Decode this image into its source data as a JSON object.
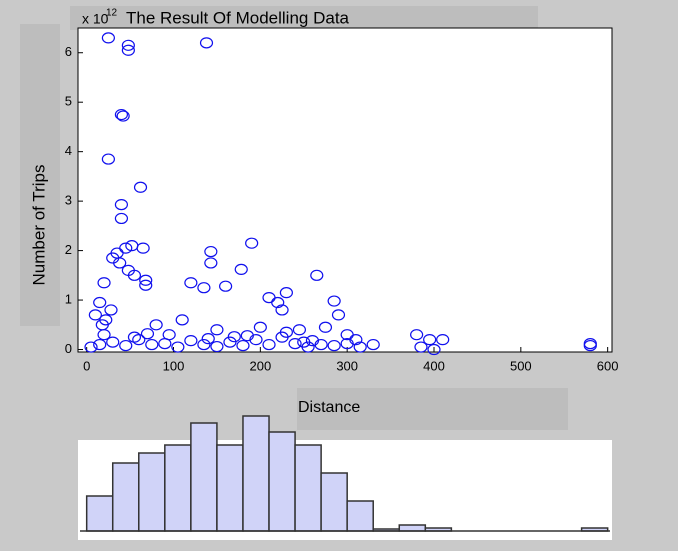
{
  "chart_data": [
    {
      "type": "scatter",
      "title": "The Result Of Modelling Data",
      "y_multiplier": "x 10",
      "y_multiplier_exponent": "12",
      "x_label": "Distance",
      "y_label": "Number of Trips",
      "color": "#1010ee",
      "xlim": [
        -10,
        605
      ],
      "ylim": [
        -0.05,
        6.5
      ],
      "xticks": [
        0,
        100,
        200,
        300,
        400,
        500,
        600
      ],
      "yticks": [
        0,
        1,
        2,
        3,
        4,
        5,
        6
      ],
      "x": [
        25,
        48,
        48,
        138,
        40,
        42,
        25,
        40,
        40,
        62,
        35,
        45,
        52,
        30,
        38,
        48,
        55,
        65,
        68,
        68,
        143,
        143,
        190,
        178,
        265,
        160,
        135,
        120,
        210,
        230,
        220,
        225,
        285,
        290,
        20,
        15,
        10,
        18,
        28,
        22,
        80,
        110,
        150,
        200,
        245,
        275,
        300,
        380,
        395,
        410,
        385,
        400,
        580,
        580,
        5,
        15,
        30,
        45,
        60,
        75,
        90,
        105,
        120,
        135,
        150,
        165,
        180,
        195,
        210,
        225,
        240,
        255,
        270,
        285,
        300,
        315,
        330,
        20,
        55,
        95,
        140,
        185,
        230,
        260,
        310,
        70,
        170,
        250
      ],
      "y": [
        6.3,
        6.15,
        6.05,
        6.2,
        4.75,
        4.72,
        3.85,
        2.93,
        2.65,
        3.28,
        1.95,
        2.05,
        2.1,
        1.85,
        1.75,
        1.6,
        1.5,
        2.05,
        1.4,
        1.3,
        1.98,
        1.75,
        2.15,
        1.62,
        1.5,
        1.28,
        1.25,
        1.35,
        1.05,
        1.15,
        0.95,
        0.8,
        0.98,
        0.7,
        1.35,
        0.95,
        0.7,
        0.5,
        0.8,
        0.6,
        0.5,
        0.6,
        0.4,
        0.45,
        0.4,
        0.45,
        0.3,
        0.3,
        0.2,
        0.2,
        0.05,
        0.0,
        0.12,
        0.08,
        0.05,
        0.1,
        0.15,
        0.08,
        0.2,
        0.1,
        0.12,
        0.05,
        0.18,
        0.1,
        0.06,
        0.15,
        0.08,
        0.2,
        0.1,
        0.25,
        0.12,
        0.05,
        0.1,
        0.08,
        0.12,
        0.05,
        0.1,
        0.3,
        0.25,
        0.3,
        0.22,
        0.28,
        0.35,
        0.18,
        0.2,
        0.32,
        0.26,
        0.15
      ]
    },
    {
      "type": "histogram",
      "color": "#d0d3f8",
      "bins": [
        0,
        30,
        60,
        90,
        120,
        150,
        180,
        210,
        240,
        270,
        300,
        330,
        360,
        390,
        420,
        450,
        480,
        510,
        540,
        570,
        600
      ],
      "counts": [
        35,
        68,
        78,
        86,
        108,
        86,
        115,
        99,
        86,
        58,
        30,
        2,
        6,
        3,
        0,
        0,
        0,
        0,
        0,
        3
      ]
    }
  ]
}
